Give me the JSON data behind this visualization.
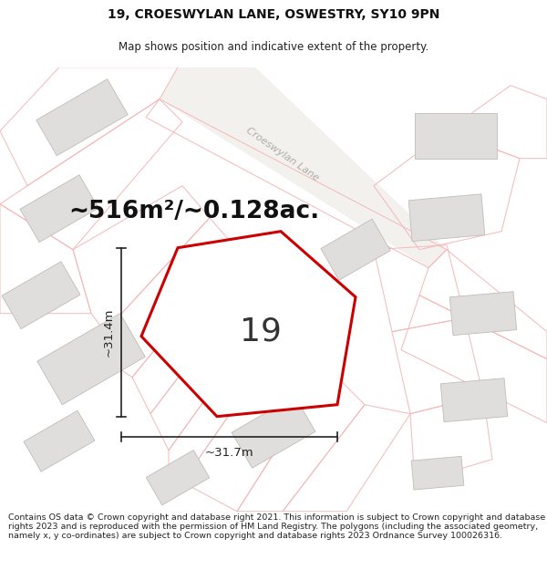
{
  "title": "19, CROESWYLAN LANE, OSWESTRY, SY10 9PN",
  "subtitle": "Map shows position and indicative extent of the property.",
  "area_text": "~516m²/~0.128ac.",
  "number_label": "19",
  "dim_horizontal": "~31.7m",
  "dim_vertical": "~31.4m",
  "road_label": "Croeswylan Lane",
  "footer_text": "Contains OS data © Crown copyright and database right 2021. This information is subject to Crown copyright and database rights 2023 and is reproduced with the permission of HM Land Registry. The polygons (including the associated geometry, namely x, y co-ordinates) are subject to Crown copyright and database rights 2023 Ordnance Survey 100026316.",
  "map_bg": "#f8f7f5",
  "highlight_color": "#cc0000",
  "building_fill": "#e0dedd",
  "building_stroke": "#c0bcb8",
  "faint_line_color": "#f5b8b8",
  "title_fontsize": 10,
  "subtitle_fontsize": 8.5,
  "area_fontsize": 19,
  "number_fontsize": 26,
  "dim_fontsize": 9.5,
  "footer_fontsize": 6.8,
  "road_label_color": "#b0aaaa",
  "road_label_size": 8,
  "dim_line_color": "#222222"
}
